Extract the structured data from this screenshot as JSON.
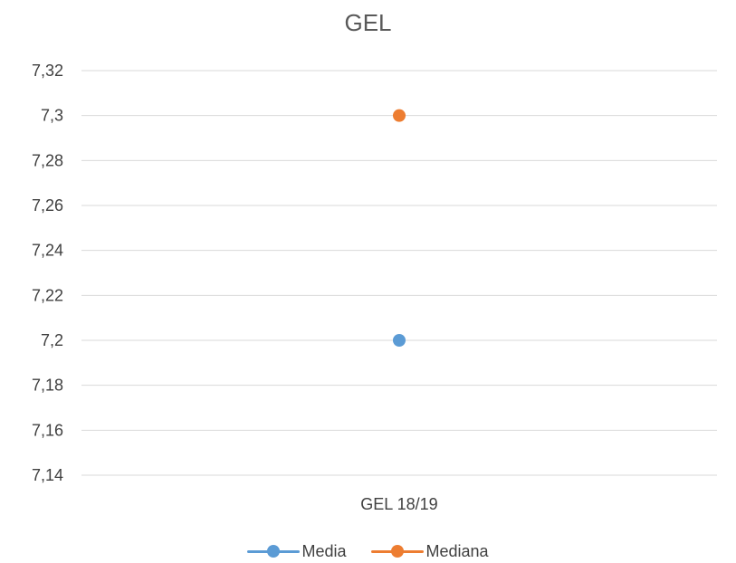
{
  "chart_data": {
    "type": "scatter",
    "title": "GEL",
    "xlabel": "",
    "ylabel": "",
    "categories": [
      "GEL 18/19"
    ],
    "ylim": [
      7.14,
      7.32
    ],
    "yticks": [
      "7,14",
      "7,16",
      "7,18",
      "7,2",
      "7,22",
      "7,24",
      "7,26",
      "7,28",
      "7,3",
      "7,32"
    ],
    "ytick_values": [
      7.14,
      7.16,
      7.18,
      7.2,
      7.22,
      7.24,
      7.26,
      7.28,
      7.3,
      7.32
    ],
    "grid": true,
    "legend_position": "bottom",
    "series": [
      {
        "name": "Media",
        "values": [
          7.2
        ],
        "color": "#5B9BD5"
      },
      {
        "name": "Mediana",
        "values": [
          7.3
        ],
        "color": "#ED7D31"
      }
    ]
  }
}
